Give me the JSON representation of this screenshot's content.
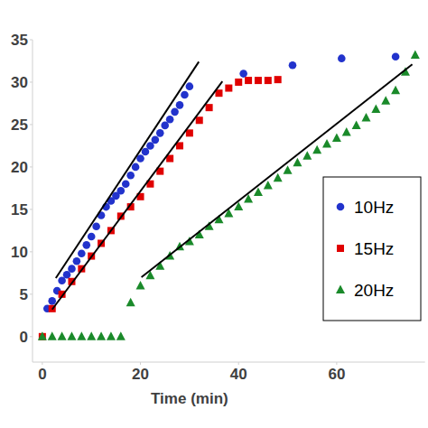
{
  "chart_data": {
    "type": "scatter",
    "x_label": "Time (min)",
    "xlim": [
      -2,
      78
    ],
    "ylim": [
      -3,
      35
    ],
    "xticks": [
      0,
      20,
      40,
      60
    ],
    "yticks": [
      0,
      5,
      10,
      15,
      20,
      25,
      30,
      35
    ],
    "grid": false,
    "legend": "right",
    "series": [
      {
        "name": "10Hz",
        "color": "#2233cc",
        "marker": "circle",
        "type": "scatter",
        "x": [
          1,
          2,
          3,
          4,
          5,
          6,
          7,
          8,
          9,
          10,
          11,
          12,
          13,
          14,
          15,
          16,
          17,
          18,
          19,
          20,
          21,
          22,
          23,
          24,
          25,
          26,
          27,
          28,
          29,
          30,
          41,
          51,
          61,
          72
        ],
        "values": [
          3.3,
          4.2,
          5.4,
          6.6,
          7.3,
          8.0,
          8.9,
          9.8,
          10.8,
          11.8,
          13.0,
          14.3,
          15.3,
          16.0,
          16.6,
          17.2,
          18.0,
          19.0,
          20.0,
          21.0,
          21.8,
          22.5,
          23.2,
          24.0,
          24.9,
          25.6,
          26.5,
          27.3,
          28.5,
          29.5,
          31.0,
          32.0,
          32.8,
          33.0
        ]
      },
      {
        "name": "15Hz",
        "color": "#e00000",
        "marker": "square",
        "type": "scatter",
        "x": [
          0,
          2,
          4,
          6,
          8,
          10,
          12,
          14,
          16,
          18,
          20,
          22,
          24,
          26,
          28,
          30,
          32,
          34,
          36,
          38,
          40,
          42,
          44,
          46,
          48
        ],
        "values": [
          0,
          3.3,
          5.0,
          6.5,
          8.0,
          9.5,
          11.0,
          12.5,
          14.2,
          15.3,
          16.5,
          18.0,
          19.5,
          21.0,
          22.5,
          24.0,
          25.5,
          27.0,
          28.7,
          29.3,
          30.0,
          30.2,
          30.2,
          30.2,
          30.3
        ]
      },
      {
        "name": "20Hz",
        "color": "#1a8a2a",
        "marker": "triangle",
        "type": "scatter",
        "x": [
          0,
          2,
          4,
          6,
          8,
          10,
          12,
          14,
          16,
          18,
          20,
          22,
          24,
          26,
          28,
          30,
          32,
          34,
          36,
          38,
          40,
          42,
          44,
          46,
          48,
          50,
          52,
          54,
          56,
          58,
          60,
          62,
          64,
          66,
          68,
          70,
          72,
          74,
          76
        ],
        "values": [
          0,
          0,
          0,
          0,
          0,
          0,
          0,
          0,
          0,
          4.0,
          6.0,
          7.2,
          8.3,
          9.5,
          10.6,
          11.2,
          12.0,
          13.0,
          13.8,
          14.5,
          15.3,
          16.2,
          17.0,
          17.8,
          18.7,
          19.6,
          20.5,
          21.3,
          22.0,
          22.7,
          23.4,
          24.1,
          24.9,
          25.8,
          26.8,
          27.8,
          29.0,
          31.2,
          33.2
        ]
      },
      {
        "type": "line",
        "color": "#000000",
        "line_style": "solid",
        "marker": "none",
        "x": [
          2.75,
          31.9
        ],
        "values": [
          6.9,
          32.4
        ]
      },
      {
        "type": "line",
        "color": "#000000",
        "line_style": "solid",
        "marker": "none",
        "x": [
          2.0,
          36.7
        ],
        "values": [
          3.2,
          30.1
        ]
      },
      {
        "type": "line",
        "color": "#000000",
        "line_style": "solid",
        "marker": "none",
        "x": [
          20.2,
          75.4
        ],
        "values": [
          7.0,
          32.1
        ]
      }
    ]
  }
}
